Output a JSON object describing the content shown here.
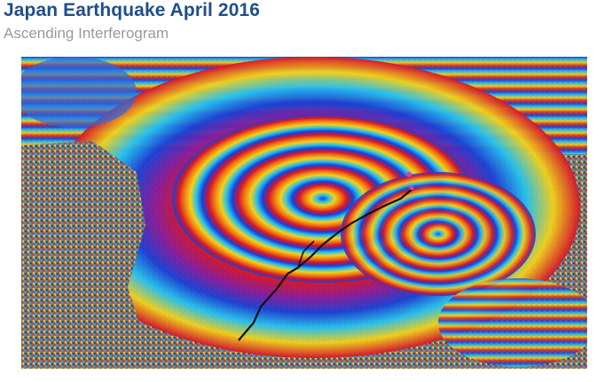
{
  "header": {
    "title": "Japan Earthquake April 2016",
    "subtitle": "Ascending Interferogram"
  },
  "figure": {
    "kind": "interferogram",
    "palette": [
      "#1a3fd6",
      "#25c2f0",
      "#c9f0f0",
      "#f2d21a",
      "#f07a12",
      "#d6142a",
      "#7a1a8a"
    ],
    "noise_color": "#7a7a7a",
    "fault_color": "#111111"
  }
}
